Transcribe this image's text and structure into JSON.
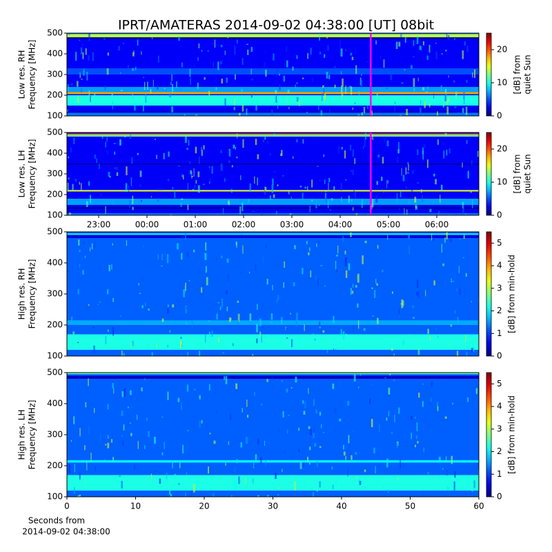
{
  "chart_data": [
    {
      "type": "spectrogram",
      "title": "IPRT/AMATERAS 2014-09-02 04:38:00 [UT]   08bit",
      "ylabel": [
        "Low res. RH",
        "Frequency [MHz]"
      ],
      "ylim": [
        100,
        500
      ],
      "yticks": [
        100,
        200,
        300,
        400,
        500
      ],
      "xlim": [
        22.343,
        30.871
      ],
      "marker_x": 28.633,
      "marker_color": "#ff00ff",
      "background": 3,
      "bands": [
        {
          "freq": [
            100,
            115
          ],
          "value": 6
        },
        {
          "freq": [
            115,
            125
          ],
          "value": 2
        },
        {
          "freq": [
            150,
            200
          ],
          "value": 10
        },
        {
          "freq": [
            205,
            215
          ],
          "value": 18
        },
        {
          "freq": [
            215,
            240
          ],
          "value": 7
        },
        {
          "freq": [
            300,
            330
          ],
          "value": 5
        },
        {
          "freq": [
            470,
            480
          ],
          "value": 1
        },
        {
          "freq": [
            480,
            495
          ],
          "value": 14
        },
        {
          "freq": [
            495,
            500
          ],
          "value": 6
        }
      ],
      "colorbar": {
        "label": [
          "[dB] from",
          "quiet Sun"
        ],
        "lim": [
          0,
          25
        ],
        "ticks": [
          0,
          10,
          20
        ]
      }
    },
    {
      "type": "spectrogram",
      "ylabel": [
        "Low res. LH",
        "Frequency [MHz]"
      ],
      "ylim": [
        100,
        500
      ],
      "yticks": [
        100,
        200,
        300,
        400,
        500
      ],
      "xlim": [
        22.343,
        30.871
      ],
      "xticks": [
        {
          "value": 23,
          "label": "23:00"
        },
        {
          "value": 24,
          "label": "00:00"
        },
        {
          "value": 25,
          "label": "01:00"
        },
        {
          "value": 26,
          "label": "02:00"
        },
        {
          "value": 27,
          "label": "03:00"
        },
        {
          "value": 28,
          "label": "04:00"
        },
        {
          "value": 29,
          "label": "05:00"
        },
        {
          "value": 30,
          "label": "06:00"
        }
      ],
      "marker_x": 28.633,
      "marker_color": "#ff00ff",
      "background": 3,
      "bands": [
        {
          "freq": [
            100,
            110
          ],
          "value": 6
        },
        {
          "freq": [
            130,
            140
          ],
          "value": 1
        },
        {
          "freq": [
            150,
            180
          ],
          "value": 7
        },
        {
          "freq": [
            215,
            222
          ],
          "value": 15
        },
        {
          "freq": [
            345,
            350
          ],
          "value": 0.5
        },
        {
          "freq": [
            480,
            490
          ],
          "value": 12
        },
        {
          "freq": [
            490,
            495
          ],
          "value": 20
        }
      ],
      "colorbar": {
        "label": [
          "[dB] from",
          "quiet Sun"
        ],
        "lim": [
          0,
          25
        ],
        "ticks": [
          0,
          10,
          20
        ]
      }
    },
    {
      "type": "spectrogram",
      "ylabel": [
        "High res. RH",
        "Frequency [MHz]"
      ],
      "ylim": [
        100,
        500
      ],
      "yticks": [
        100,
        200,
        300,
        400,
        500
      ],
      "xlim": [
        0,
        60
      ],
      "background": 1.2,
      "bands": [
        {
          "freq": [
            120,
            170
          ],
          "value": 2.2
        },
        {
          "freq": [
            200,
            215
          ],
          "value": 1.6
        },
        {
          "freq": [
            480,
            490
          ],
          "value": 0.5
        },
        {
          "freq": [
            490,
            495
          ],
          "value": 2
        }
      ],
      "colorbar": {
        "label": [
          "[dB] from min-hold"
        ],
        "lim": [
          0,
          5.5
        ],
        "ticks": [
          0,
          1,
          2,
          3,
          4,
          5
        ]
      }
    },
    {
      "type": "spectrogram",
      "ylabel": [
        "High res. LH",
        "Frequency [MHz]"
      ],
      "ylim": [
        100,
        500
      ],
      "yticks": [
        100,
        200,
        300,
        400,
        500
      ],
      "xlim": [
        0,
        60
      ],
      "xticks": [
        0,
        10,
        20,
        30,
        40,
        50,
        60
      ],
      "xlabel": [
        "Seconds from",
        "2014-09-02 04:38:00"
      ],
      "background": 1.2,
      "bands": [
        {
          "freq": [
            120,
            170
          ],
          "value": 2.2
        },
        {
          "freq": [
            210,
            218
          ],
          "value": 2
        },
        {
          "freq": [
            480,
            490
          ],
          "value": 0.4
        },
        {
          "freq": [
            495,
            500
          ],
          "value": 2.5
        }
      ],
      "colorbar": {
        "label": [
          "[dB] from min-hold"
        ],
        "lim": [
          0,
          5.5
        ],
        "ticks": [
          0,
          1,
          2,
          3,
          4,
          5
        ]
      }
    }
  ]
}
